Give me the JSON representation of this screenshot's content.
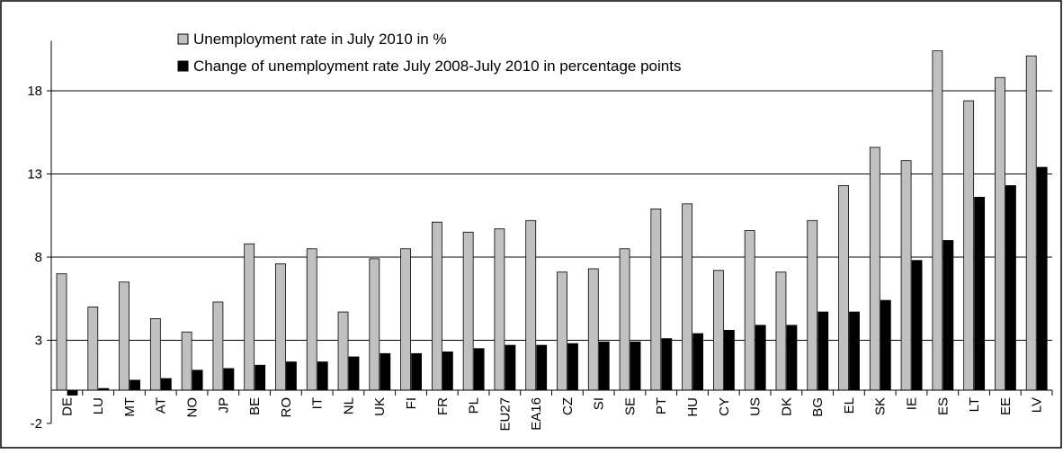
{
  "chart_data": {
    "type": "bar",
    "categories": [
      "DE",
      "LU",
      "MT",
      "AT",
      "NO",
      "JP",
      "BE",
      "RO",
      "IT",
      "NL",
      "UK",
      "FI",
      "FR",
      "PL",
      "EU27",
      "EA16",
      "CZ",
      "SI",
      "SE",
      "PT",
      "HU",
      "CY",
      "US",
      "DK",
      "BG",
      "EL",
      "SK",
      "IE",
      "ES",
      "LT",
      "EE",
      "LV"
    ],
    "series": [
      {
        "name": "Unemployment rate in July 2010 in %",
        "color": "#c0c0c0",
        "values": [
          7.0,
          5.0,
          6.5,
          4.3,
          3.5,
          5.3,
          8.8,
          7.6,
          8.5,
          4.7,
          7.9,
          8.5,
          10.1,
          9.5,
          9.7,
          10.2,
          7.1,
          7.3,
          8.5,
          10.9,
          11.2,
          7.2,
          9.6,
          7.1,
          10.2,
          12.3,
          14.6,
          13.8,
          20.4,
          17.4,
          18.8,
          20.1
        ]
      },
      {
        "name": "Change of unemployment rate July 2008-July 2010 in percentage points",
        "color": "#000000",
        "values": [
          -0.3,
          0.1,
          0.6,
          0.7,
          1.2,
          1.3,
          1.5,
          1.7,
          1.7,
          2.0,
          2.2,
          2.2,
          2.3,
          2.5,
          2.7,
          2.7,
          2.8,
          2.9,
          2.9,
          3.1,
          3.4,
          3.6,
          3.9,
          3.9,
          4.7,
          4.7,
          5.4,
          7.8,
          9.0,
          11.6,
          12.3,
          13.4
        ]
      }
    ],
    "yticks": [
      -2,
      3,
      8,
      13,
      18
    ],
    "ylim": [
      -2,
      21
    ],
    "grid": true,
    "legend_position": "top-left inside plot"
  }
}
